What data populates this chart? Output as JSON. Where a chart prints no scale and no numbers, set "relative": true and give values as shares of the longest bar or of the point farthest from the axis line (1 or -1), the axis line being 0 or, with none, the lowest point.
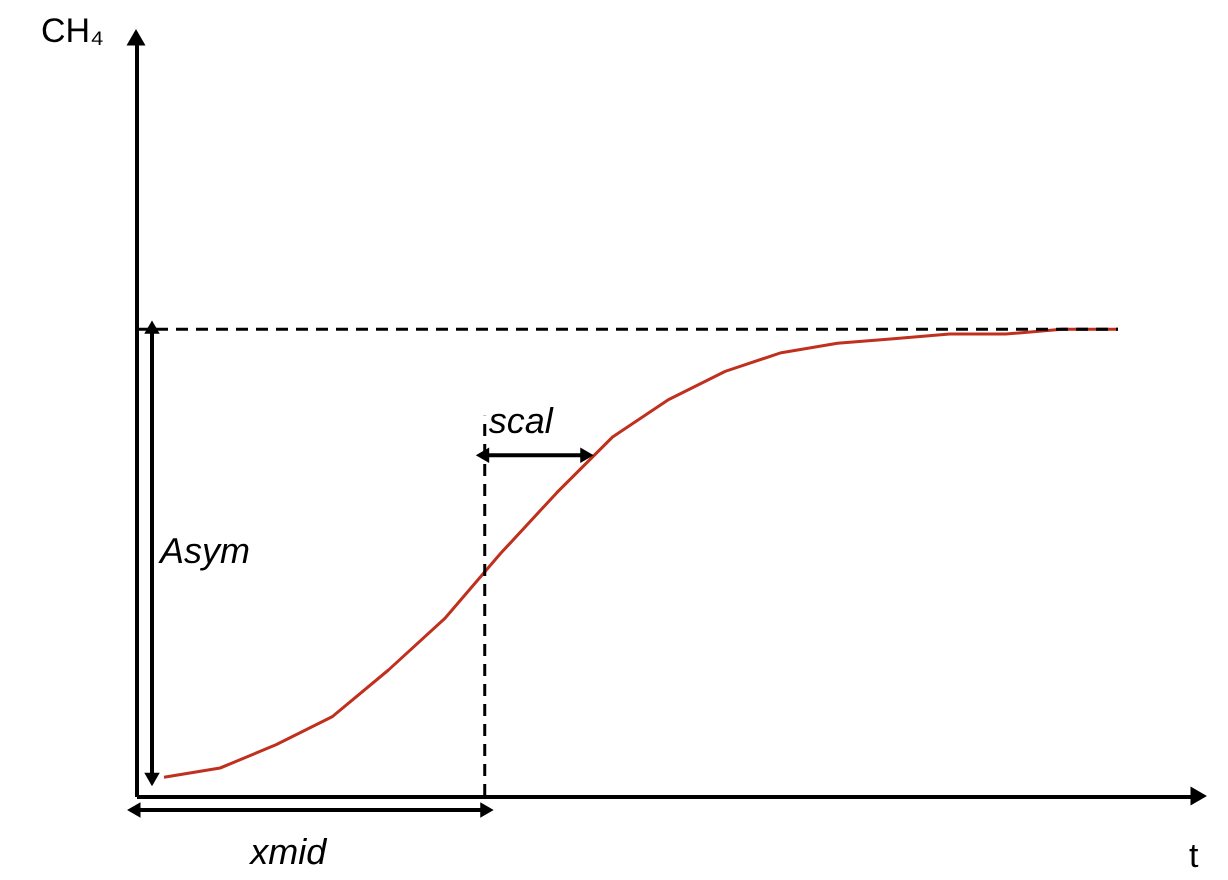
{
  "chart_data": {
    "type": "line",
    "relative": true,
    "xlabel": "t",
    "tick_labels": false,
    "grid": false,
    "marker": "none",
    "line_style": "solid",
    "categories": [
      null,
      null,
      null,
      null,
      null,
      null,
      null,
      null,
      null,
      null,
      null,
      null,
      null,
      null,
      null,
      null,
      null,
      null
    ],
    "series": [
      {
        "color": "#c0301f",
        "values": [
          0.04,
          0.06,
          0.11,
          0.17,
          0.27,
          0.38,
          0.52,
          0.65,
          0.77,
          0.85,
          0.91,
          0.95,
          0.97,
          0.98,
          0.99,
          0.99,
          1.0,
          1.0
        ]
      }
    ],
    "ref_lines": [
      {
        "axis": "y",
        "value": 1,
        "line_style": "dashed",
        "color": "#000000"
      }
    ],
    "annotations": [
      "Asym",
      "scal",
      "xmid",
      "CH₄"
    ]
  }
}
